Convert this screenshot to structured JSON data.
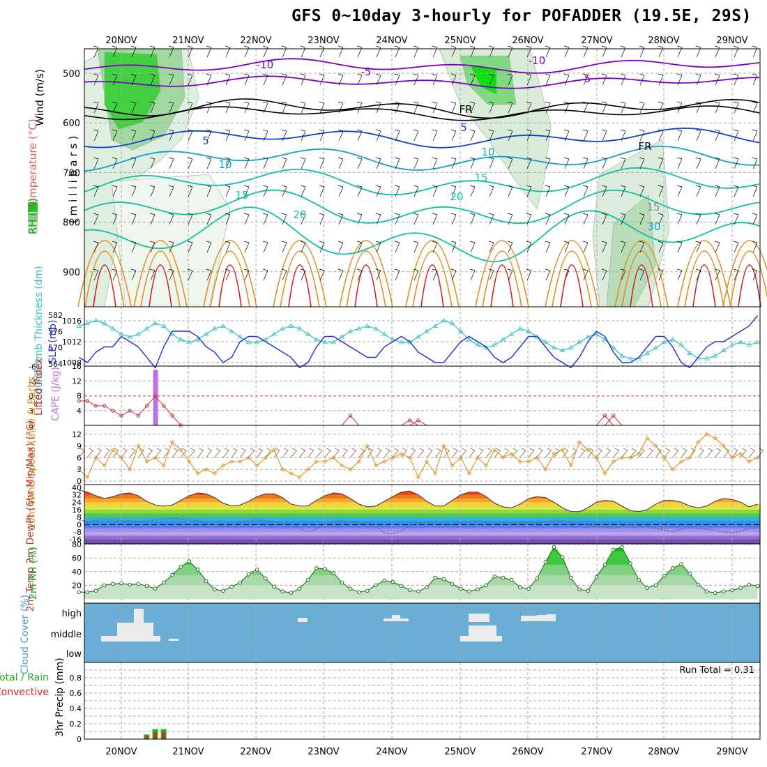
{
  "title": "GFS 0~10day 3-hourly for POFADDER (19.5E, 29S)",
  "colors": {
    "purple": "#8000c0",
    "blue": "#1040d0",
    "cyan": "#10a0d0",
    "teal": "#10c0a0",
    "orange": "#e09020",
    "red": "#d02020",
    "rh_green": "#20c020",
    "thickness": "#30c0c0",
    "slp": "#2030d0",
    "cape": "#c070e0",
    "lifted": "#d03030",
    "wind": "#e09020",
    "barb": "#806040",
    "cloud_bg": "#6aaed6",
    "rain": "#20b020",
    "convective": "#e02020"
  },
  "chart_data": [
    {
      "type": "heatmap",
      "panel": "upper-air",
      "x_dates": [
        "20NOV",
        "21NOV",
        "22NOV",
        "23NOV",
        "24NOV",
        "25NOV",
        "26NOV",
        "27NOV",
        "28NOV",
        "29NOV"
      ],
      "ylabel_top": "Wind (m/s)",
      "ylabel_temp": "Temperature (°C)",
      "ylabel_rh": "RH (%)",
      "ylabel_units": "(millibars)",
      "y_ticks": [
        "500",
        "600",
        "700",
        "800",
        "900"
      ],
      "contour_labels": [
        "-10",
        "-5",
        "-10",
        "-5",
        "FR",
        "FR",
        "5",
        "5",
        "10",
        "10",
        "15",
        "15",
        "20",
        "20",
        "15",
        "30"
      ],
      "rh_levels_percent": [
        70,
        80,
        90
      ]
    },
    {
      "type": "line",
      "panel": "thickness-slp",
      "ylabel_left": "1000-500mb Thickness (dm)",
      "ylabel_right": "SLP (mb)",
      "y_left_ticks": [
        "582",
        "576",
        "570",
        "564"
      ],
      "y_right_ticks": [
        "1016",
        "1012",
        "1008"
      ],
      "series": [
        {
          "name": "thickness",
          "values": [
            578,
            579,
            580,
            579,
            577,
            575,
            574,
            575,
            577,
            579,
            578,
            575,
            573,
            572,
            573,
            575,
            577,
            578,
            576,
            574,
            572,
            572,
            573,
            575,
            577,
            578,
            577,
            575,
            573,
            572,
            572,
            574,
            576,
            577,
            578,
            577,
            575,
            573,
            572,
            572,
            574,
            576,
            578,
            580,
            579,
            576,
            573,
            571,
            570,
            571,
            573,
            575,
            577,
            576,
            574,
            572,
            570,
            569,
            570,
            572,
            574,
            575,
            573,
            570,
            567,
            566,
            566,
            568,
            570,
            572,
            573,
            571,
            568,
            566,
            566,
            567,
            569,
            571,
            572,
            571,
            572
          ]
        },
        {
          "name": "slp",
          "values": [
            1009,
            1008,
            1010,
            1011,
            1011,
            1013,
            1012,
            1011,
            1009,
            1007,
            1011,
            1014,
            1014,
            1014,
            1013,
            1011,
            1010,
            1008,
            1009,
            1012,
            1013,
            1013,
            1012,
            1011,
            1010,
            1009,
            1007,
            1008,
            1011,
            1013,
            1013,
            1012,
            1011,
            1010,
            1009,
            1009,
            1011,
            1012,
            1013,
            1012,
            1010,
            1009,
            1008,
            1008,
            1010,
            1012,
            1013,
            1012,
            1011,
            1009,
            1008,
            1009,
            1011,
            1013,
            1013,
            1011,
            1009,
            1008,
            1007,
            1009,
            1012,
            1014,
            1013,
            1010,
            1008,
            1008,
            1009,
            1011,
            1013,
            1013,
            1011,
            1008,
            1007,
            1009,
            1011,
            1012,
            1012,
            1013,
            1014,
            1015,
            1017
          ]
        }
      ]
    },
    {
      "type": "bar",
      "panel": "cape-lifted-index",
      "ylabel_left": "Lifted Index",
      "ylabel_right": "CAPE (J/kg)",
      "y_left_ticks": [
        "-6",
        "-3",
        "0",
        "3",
        "6"
      ],
      "y_right_ticks": [
        "16",
        "12",
        "8",
        "4"
      ],
      "cape_peak": {
        "index": 9,
        "value": 15
      },
      "lifted_index": [
        1,
        1,
        2,
        2,
        3,
        4,
        3,
        4,
        2,
        0,
        2,
        4,
        6,
        6,
        6,
        6,
        6,
        6,
        6,
        6,
        6,
        6,
        6,
        6,
        6,
        6,
        6,
        6,
        6,
        6,
        6,
        6,
        6,
        6,
        6,
        6,
        6,
        6,
        6,
        6,
        6,
        6,
        6,
        6,
        6,
        6,
        6,
        6,
        6,
        6,
        6,
        6,
        6,
        6,
        6,
        6,
        6,
        6,
        6,
        6,
        6,
        6,
        6,
        6,
        6,
        6,
        6,
        6,
        6,
        6,
        6,
        6,
        6,
        6,
        6,
        6,
        6,
        6,
        6,
        6,
        6
      ],
      "lifted_index_bumps": [
        {
          "index": 32,
          "value": 4
        },
        {
          "index": 39,
          "value": 5
        },
        {
          "index": 40,
          "value": 5
        },
        {
          "index": 62,
          "value": 4
        },
        {
          "index": 63,
          "value": 4
        }
      ]
    },
    {
      "type": "line",
      "panel": "10m-wind",
      "ylabel": "10m Wind Speed (m/s) & Barbs",
      "y_ticks": [
        "12",
        "9",
        "6",
        "3",
        "0"
      ],
      "values": [
        3,
        1,
        6,
        4,
        8,
        6,
        3,
        9,
        5,
        6,
        4,
        10,
        8,
        5,
        2,
        3,
        2,
        4,
        5,
        5,
        6,
        4,
        6,
        8,
        3,
        2,
        1,
        3,
        5,
        5,
        6,
        4,
        3,
        5,
        9,
        4,
        5,
        6,
        7,
        6,
        1,
        5,
        2,
        9,
        4,
        6,
        2,
        6,
        4,
        8,
        6,
        7,
        5,
        5,
        6,
        3,
        7,
        8,
        4,
        10,
        8,
        6,
        2,
        5,
        6,
        6,
        7,
        11,
        9,
        6,
        3,
        5,
        6,
        10,
        12,
        11,
        9,
        6,
        7,
        5,
        6
      ]
    },
    {
      "type": "area",
      "panel": "2m-temp",
      "ylabel": "2m Temp 2m DewPt (6hr Min/Max) (°C)",
      "y_ticks": [
        "40",
        "32",
        "24",
        "16",
        "8",
        "0",
        "-8",
        "-16"
      ],
      "temp": [
        37,
        35,
        31,
        28,
        30,
        33,
        34,
        31,
        25,
        21,
        20,
        21,
        26,
        31,
        34,
        33,
        29,
        23,
        20,
        21,
        25,
        30,
        33,
        33,
        29,
        22,
        20,
        20,
        26,
        31,
        34,
        33,
        28,
        22,
        19,
        20,
        25,
        30,
        35,
        36,
        32,
        25,
        20,
        20,
        26,
        32,
        35,
        35,
        30,
        23,
        19,
        18,
        22,
        28,
        30,
        29,
        24,
        18,
        14,
        14,
        18,
        24,
        26,
        25,
        20,
        15,
        14,
        16,
        22,
        26,
        26,
        24,
        20,
        18,
        20,
        25,
        28,
        27,
        24,
        19,
        22
      ],
      "dewpt": [
        5,
        3,
        4,
        6,
        5,
        4,
        4,
        3,
        4,
        5,
        6,
        7,
        6,
        5,
        4,
        2,
        0,
        -2,
        -1,
        2,
        4,
        5,
        4,
        3,
        2,
        1,
        -4,
        -8,
        -5,
        0,
        3,
        4,
        3,
        2,
        2,
        -2,
        -9,
        -10,
        -7,
        -1,
        2,
        3,
        2,
        1,
        0,
        2,
        3,
        4,
        3,
        2,
        2,
        1,
        2,
        3,
        2,
        3,
        4,
        4,
        3,
        1,
        0,
        -2,
        -3,
        -4,
        -2,
        0,
        -1,
        -2,
        -4,
        -6,
        -8,
        -5,
        -3,
        -4,
        -5,
        -6,
        -8,
        -9,
        -7,
        -4,
        -4
      ]
    },
    {
      "type": "area",
      "panel": "2m-rh",
      "ylabel": "2m RH (%)",
      "y_ticks": [
        "80",
        "60",
        "40",
        "20"
      ],
      "values": [
        10,
        10,
        12,
        20,
        22,
        23,
        21,
        22,
        19,
        15,
        24,
        35,
        47,
        55,
        43,
        26,
        14,
        12,
        18,
        24,
        36,
        43,
        30,
        18,
        11,
        9,
        15,
        28,
        45,
        44,
        38,
        24,
        15,
        10,
        12,
        20,
        27,
        25,
        19,
        13,
        11,
        17,
        31,
        29,
        22,
        15,
        11,
        14,
        20,
        33,
        31,
        28,
        17,
        15,
        30,
        54,
        76,
        61,
        31,
        14,
        12,
        32,
        50,
        72,
        76,
        52,
        28,
        16,
        20,
        34,
        45,
        51,
        37,
        21,
        11,
        9,
        11,
        13,
        16,
        21,
        19
      ]
    },
    {
      "type": "heatmap",
      "panel": "cloud-cover",
      "ylabel": "Cloud Cover (%)",
      "y_ticks": [
        "high",
        "middle",
        "low"
      ]
    },
    {
      "type": "bar",
      "panel": "precip",
      "ylabel": "3hr Precip (mm)",
      "legend_rain": "Total / Rain",
      "legend_convective": "Convective",
      "run_total": "Run Total = 0.31",
      "y_ticks": [
        "0.8",
        "0.6",
        "0.4",
        "0.2",
        "0"
      ],
      "rain": [
        0,
        0,
        0,
        0,
        0,
        0,
        0,
        0.06,
        0.13,
        0.13,
        0,
        0,
        0,
        0,
        0,
        0,
        0,
        0,
        0,
        0,
        0,
        0,
        0,
        0,
        0,
        0,
        0,
        0,
        0,
        0,
        0,
        0,
        0,
        0,
        0,
        0,
        0,
        0,
        0,
        0,
        0,
        0,
        0,
        0,
        0,
        0,
        0,
        0,
        0,
        0,
        0,
        0,
        0,
        0,
        0,
        0,
        0,
        0,
        0,
        0,
        0,
        0,
        0,
        0,
        0,
        0,
        0,
        0,
        0,
        0,
        0,
        0,
        0,
        0,
        0,
        0,
        0,
        0,
        0,
        0,
        0
      ],
      "convective": [
        0,
        0,
        0,
        0,
        0,
        0,
        0,
        0.04,
        0.09,
        0.09,
        0,
        0,
        0,
        0,
        0,
        0,
        0,
        0,
        0,
        0,
        0,
        0,
        0,
        0,
        0,
        0,
        0,
        0,
        0,
        0,
        0,
        0,
        0,
        0,
        0,
        0,
        0,
        0,
        0,
        0,
        0,
        0,
        0,
        0,
        0,
        0,
        0,
        0,
        0,
        0,
        0,
        0,
        0,
        0,
        0,
        0,
        0,
        0,
        0,
        0,
        0,
        0,
        0,
        0,
        0,
        0,
        0,
        0,
        0,
        0,
        0,
        0,
        0,
        0,
        0,
        0,
        0,
        0,
        0,
        0,
        0
      ]
    }
  ]
}
